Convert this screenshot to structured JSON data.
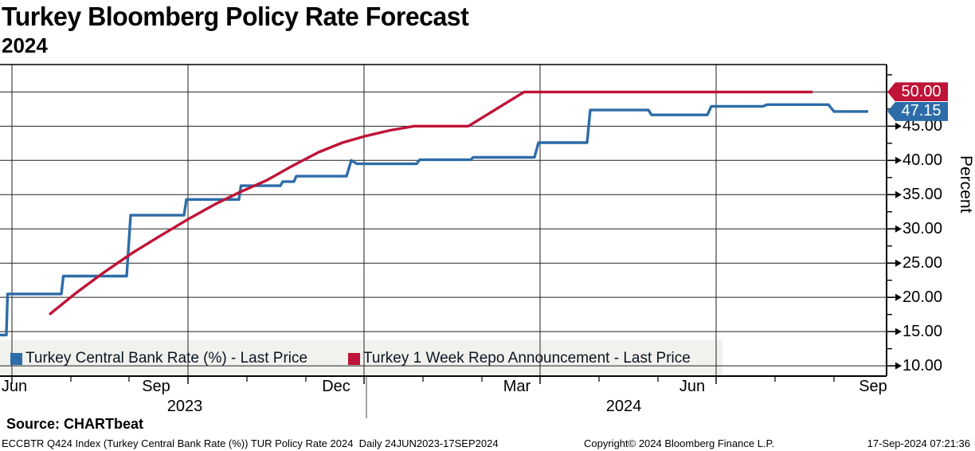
{
  "title": "Turkey Bloomberg Policy Rate Forecast",
  "subtitle": "2024",
  "source": "Source: CHARTbeat",
  "footer": {
    "left": "ECCBTR Q424 Index (Turkey Central Bank Rate (%)) TUR Policy Rate 2024  Daily 24JUN2023-17SEP2024",
    "center": "Copyright© 2024 Bloomberg Finance L.P.",
    "right": "17-Sep-2024 07:21:36"
  },
  "chart_data": {
    "type": "line",
    "title": "Turkey Bloomberg Policy Rate Forecast 2024",
    "xlabel": "",
    "ylabel": "Percent",
    "ylim": [
      8.5,
      54
    ],
    "y_major_ticks": [
      10,
      15,
      20,
      25,
      30,
      35,
      40,
      45,
      50
    ],
    "y_minor_step": 2.5,
    "grid": true,
    "legend_position": "bottom-left",
    "x_axis": {
      "month_labels": [
        {
          "label": "Jun",
          "x": 18
        },
        {
          "label": "Sep",
          "x": 196
        },
        {
          "label": "Dec",
          "x": 422
        },
        {
          "label": "Mar",
          "x": 649
        },
        {
          "label": "Jun",
          "x": 869
        },
        {
          "label": "Sep",
          "x": 1096
        }
      ],
      "year_labels": [
        {
          "label": "2023",
          "x": 232
        },
        {
          "label": "2024",
          "x": 783
        }
      ],
      "quarter_gridlines_x": [
        15,
        236,
        457,
        678,
        899
      ],
      "month_ticks_x": [
        89,
        162,
        310,
        384,
        531,
        605,
        752,
        826,
        973,
        1047
      ],
      "year_separator_x": 460
    },
    "series": [
      {
        "name": "Turkey Central Bank Rate (%) - Last Price",
        "color": "#2d6ca8",
        "last_price": "47.15",
        "last_value": 47.15,
        "points": [
          [
            0,
            14.5
          ],
          [
            8,
            14.5
          ],
          [
            9.5,
            20.5
          ],
          [
            77,
            20.5
          ],
          [
            79.5,
            23.1
          ],
          [
            159,
            23.1
          ],
          [
            164,
            32.0
          ],
          [
            231,
            32.0
          ],
          [
            234,
            34.3
          ],
          [
            300,
            34.3
          ],
          [
            302.5,
            36.3
          ],
          [
            352,
            36.3
          ],
          [
            355,
            36.9
          ],
          [
            369,
            36.9
          ],
          [
            372,
            37.7
          ],
          [
            435,
            37.7
          ],
          [
            441,
            40.0
          ],
          [
            448,
            39.5
          ],
          [
            523,
            39.5
          ],
          [
            527,
            40.1
          ],
          [
            591,
            40.1
          ],
          [
            594,
            40.45
          ],
          [
            671,
            40.45
          ],
          [
            676,
            42.6
          ],
          [
            737,
            42.6
          ],
          [
            741,
            47.35
          ],
          [
            814,
            47.35
          ],
          [
            818,
            46.65
          ],
          [
            888,
            46.65
          ],
          [
            893,
            47.9
          ],
          [
            958,
            47.9
          ],
          [
            963,
            48.15
          ],
          [
            1040,
            48.15
          ],
          [
            1047,
            47.15
          ],
          [
            1090,
            47.15
          ]
        ]
      },
      {
        "name": "Turkey 1 Week Repo Announcement - Last Price",
        "color": "#bf1337",
        "last_price": "50.00",
        "last_value": 50.0,
        "points": [
          [
            62,
            17.5
          ],
          [
            95,
            20.6
          ],
          [
            130,
            23.6
          ],
          [
            165,
            26.4
          ],
          [
            200,
            28.9
          ],
          [
            236,
            31.4
          ],
          [
            270,
            33.6
          ],
          [
            300,
            35.3
          ],
          [
            335,
            37.1
          ],
          [
            367,
            39.2
          ],
          [
            400,
            41.2
          ],
          [
            430,
            42.6
          ],
          [
            457,
            43.5
          ],
          [
            490,
            44.4
          ],
          [
            520,
            45.0
          ],
          [
            588,
            45.0
          ],
          [
            658,
            50.0
          ],
          [
            1020,
            50.0
          ]
        ]
      }
    ]
  }
}
